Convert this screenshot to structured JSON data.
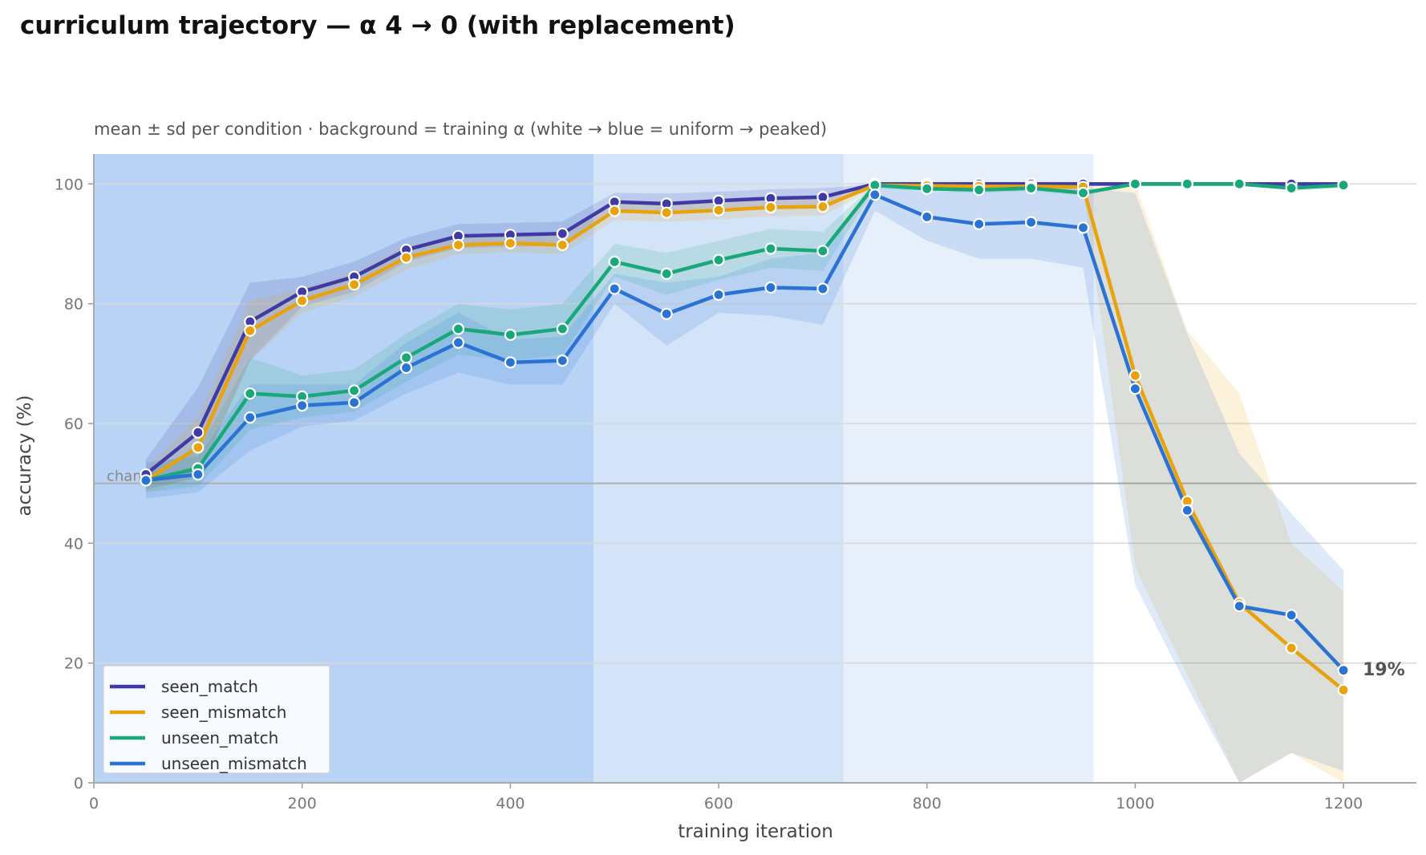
{
  "chart_data": {
    "type": "line",
    "title": "curriculum trajectory — α 4 → 0 (with replacement)",
    "subtitle": "mean ± sd per condition · background = training α (white → blue = uniform → peaked)",
    "xlabel": "training iteration",
    "ylabel": "accuracy (%)",
    "xlim": [
      0,
      1270
    ],
    "ylim": [
      0,
      105
    ],
    "xticks": [
      "0",
      "200",
      "400",
      "600",
      "800",
      "1000",
      "1200"
    ],
    "yticks": [
      "0",
      "20",
      "40",
      "60",
      "80",
      "100"
    ],
    "grid": "horizontal",
    "legend_position": "bottom-left",
    "chance_level": 50,
    "chance_label": "chance",
    "end_annotation": "19%",
    "end_annotation_value": 19,
    "background_bands": [
      {
        "x_start": 0,
        "x_end": 480,
        "color": "#b8d3f5"
      },
      {
        "x_start": 480,
        "x_end": 720,
        "color": "#d3e3f8"
      },
      {
        "x_start": 720,
        "x_end": 960,
        "color": "#e7effb"
      },
      {
        "x_start": 960,
        "x_end": 1270,
        "color": "#ffffff"
      }
    ],
    "x": [
      50,
      100,
      150,
      200,
      250,
      300,
      350,
      400,
      450,
      500,
      550,
      600,
      650,
      700,
      750,
      800,
      850,
      900,
      950,
      1000,
      1050,
      1100,
      1150,
      1200
    ],
    "series": [
      {
        "name": "seen_match",
        "color": "#3f3aa6",
        "values": [
          51.5,
          58.5,
          77,
          82,
          84.5,
          89,
          91.3,
          91.5,
          91.7,
          97,
          96.7,
          97.2,
          97.6,
          97.8,
          100,
          100,
          100,
          100,
          100,
          100,
          100,
          100,
          100,
          100
        ],
        "lower": [
          49,
          51,
          70.5,
          79.5,
          82,
          87,
          89.3,
          89.5,
          89.7,
          95.5,
          95,
          95.7,
          96.1,
          96.3,
          100,
          100,
          100,
          100,
          100,
          100,
          100,
          100,
          100,
          100
        ],
        "upper": [
          54,
          66,
          83.5,
          84.5,
          87,
          91,
          93.3,
          93.5,
          93.7,
          98.5,
          98.4,
          98.7,
          99.1,
          99.3,
          100,
          100,
          100,
          100,
          100,
          100,
          100,
          100,
          100,
          100
        ]
      },
      {
        "name": "seen_mismatch",
        "color": "#e8a20c",
        "values": [
          50.5,
          56,
          75.5,
          80.5,
          83.2,
          87.7,
          89.8,
          90.1,
          89.8,
          95.5,
          95.2,
          95.6,
          96.1,
          96.2,
          99.8,
          99.7,
          99.6,
          99.6,
          99.5,
          68,
          47,
          30,
          22.5,
          15.5
        ],
        "lower": [
          48.5,
          51,
          70.5,
          78.5,
          81.2,
          85.7,
          88.3,
          88.6,
          88.3,
          94,
          93.7,
          94.1,
          94.6,
          94.7,
          99.3,
          99.2,
          99.1,
          99.1,
          99,
          36,
          18,
          -5,
          5,
          -2
        ],
        "upper": [
          52.5,
          61,
          80.5,
          82.5,
          85.2,
          89.7,
          91.3,
          91.6,
          91.3,
          97,
          96.7,
          97.1,
          97.6,
          97.7,
          100,
          100,
          100,
          100,
          100,
          100,
          75.5,
          65,
          40,
          32
        ]
      },
      {
        "name": "unseen_match",
        "color": "#1aa87a",
        "values": [
          50.5,
          52.5,
          65,
          64.5,
          65.5,
          71,
          75.8,
          74.8,
          75.8,
          87,
          85,
          87.3,
          89.2,
          88.8,
          99.8,
          99.2,
          99,
          99.3,
          98.5,
          100,
          100,
          100,
          99.3,
          99.8
        ],
        "lower": [
          48.5,
          49.5,
          59,
          61,
          62,
          67,
          71.5,
          70.5,
          71.5,
          84.5,
          81.5,
          84,
          86,
          85.5,
          99.3,
          98.7,
          98.5,
          98.8,
          98,
          100,
          100,
          100,
          98.8,
          99.3
        ],
        "upper": [
          52.5,
          55.5,
          71,
          68,
          69,
          75,
          80,
          79,
          80,
          90,
          88.5,
          90.5,
          92.5,
          92,
          100,
          99.7,
          99.5,
          99.8,
          99,
          100,
          100,
          100,
          99.8,
          100
        ]
      },
      {
        "name": "unseen_mismatch",
        "color": "#2a73d4",
        "values": [
          50.5,
          51.5,
          61,
          63,
          63.5,
          69.3,
          73.5,
          70.2,
          70.5,
          82.5,
          78.3,
          81.5,
          82.7,
          82.5,
          98.2,
          94.5,
          93.3,
          93.6,
          92.7,
          65.8,
          45.5,
          29.5,
          28,
          18.8
        ],
        "lower": [
          47.5,
          48.5,
          55.5,
          59.5,
          60.5,
          65,
          68.5,
          66.5,
          66.5,
          80,
          73,
          78.5,
          78,
          76.5,
          95.5,
          90.5,
          87.5,
          87.5,
          86,
          33,
          16,
          -5,
          5,
          2
        ],
        "upper": [
          53.5,
          54.5,
          66.5,
          66.5,
          66.5,
          73.5,
          78.5,
          74,
          74.5,
          85,
          83.5,
          84.5,
          87.5,
          88.5,
          100,
          98.5,
          99,
          99.5,
          99.3,
          98.5,
          75,
          55,
          45,
          35.5
        ]
      }
    ]
  }
}
